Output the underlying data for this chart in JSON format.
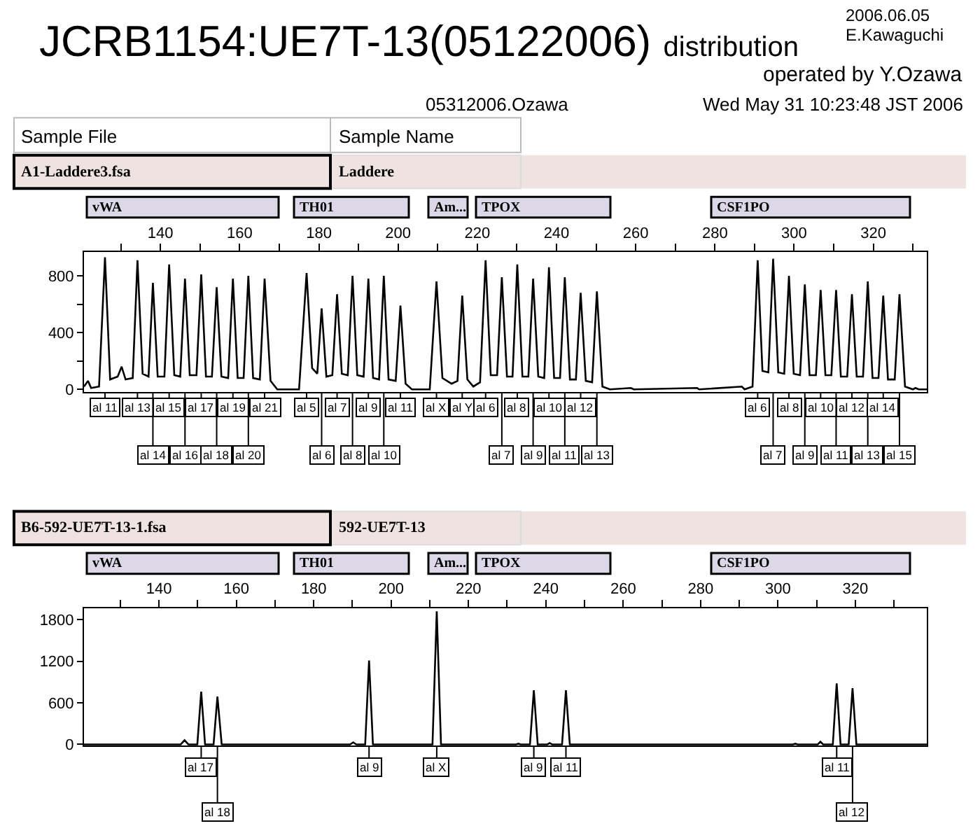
{
  "chart_data": [
    {
      "type": "line",
      "title": "JCRB1154:UE7T-13(05122006) distribution",
      "marker": "none",
      "annotations": [
        "2006.06.05",
        "E.Kawaguchi",
        "operated by Y.Ozawa",
        "05312006.Ozawa",
        "Wed May 31 10:23:48 JST 2006",
        "Sample File",
        "Sample Name",
        "A1-Laddere3.fsa",
        "Laddere",
        "vWA",
        "TH01",
        "Am...",
        "TPOX",
        "CSF1PO",
        "al 11",
        "al 13",
        "al 14",
        "al 15",
        "al 16",
        "al 17",
        "al 18",
        "al 19",
        "al 20",
        "al 21",
        "al 5",
        "al 6",
        "al 7",
        "al 8",
        "al 9",
        "al 10",
        "al 11",
        "al X",
        "al Y",
        "al 6",
        "al 7",
        "al 8",
        "al 9",
        "al 10",
        "al 11",
        "al 12",
        "al 13",
        "al 6",
        "al 7",
        "al 8",
        "al 9",
        "al 10",
        "al 11",
        "al 12",
        "al 13",
        "al 14",
        "al 15"
      ],
      "xlim": [
        120.7,
        333.5
      ],
      "xticks": [
        {
          "value": 130,
          "label": null
        },
        140,
        {
          "value": 150,
          "label": null
        },
        160,
        {
          "value": 170,
          "label": null
        },
        180,
        {
          "value": 190,
          "label": null
        },
        200,
        {
          "value": 210,
          "label": null
        },
        220,
        {
          "value": 230,
          "label": null
        },
        240,
        {
          "value": 250,
          "label": null
        },
        260,
        {
          "value": 270,
          "label": null
        },
        280,
        {
          "value": 290,
          "label": null
        },
        300,
        {
          "value": 310,
          "label": null
        },
        320,
        {
          "value": 330,
          "label": null
        }
      ],
      "ylim": [
        -20,
        966
      ],
      "yticks": [
        0,
        {
          "value": 200,
          "label": null
        },
        400,
        {
          "value": 600,
          "label": null
        },
        800
      ],
      "series": [
        {
          "color": "#000000",
          "x": [
            120.7,
            121.7,
            122.5,
            124.5,
            126.0,
            127.3,
            129.2,
            130.2,
            131.2,
            133.0,
            134.2,
            135.5,
            137.0,
            138.1,
            139.3,
            141.0,
            142.2,
            143.5,
            145.0,
            146.2,
            147.4,
            149.1,
            150.3,
            151.5,
            153.0,
            154.2,
            155.4,
            157.1,
            158.3,
            159.5,
            161.0,
            162.2,
            163.4,
            165.1,
            166.3,
            167.8,
            169.5,
            175.0,
            176.9,
            178.3,
            179.6,
            180.7,
            181.9,
            183.4,
            184.6,
            185.8,
            187.3,
            188.5,
            189.7,
            191.3,
            192.5,
            193.7,
            195.2,
            196.4,
            197.6,
            199.4,
            200.6,
            201.9,
            203.5,
            208.0,
            209.7,
            211.2,
            213.5,
            215.0,
            216.2,
            217.5,
            219.0,
            220.7,
            222.1,
            223.4,
            225.0,
            226.2,
            227.5,
            228.9,
            230.1,
            231.4,
            232.9,
            234.1,
            235.4,
            236.9,
            238.1,
            239.4,
            240.9,
            242.1,
            243.4,
            244.9,
            246.1,
            247.4,
            249.0,
            250.2,
            251.6,
            253.5,
            258.8,
            259.5,
            275.5,
            276.0,
            286.8,
            287.5,
            289.5,
            290.8,
            292.0,
            293.5,
            294.7,
            296.0,
            297.5,
            298.7,
            299.9,
            301.5,
            302.7,
            303.9,
            305.5,
            306.7,
            307.9,
            309.4,
            310.6,
            311.8,
            313.4,
            314.6,
            315.8,
            317.4,
            318.6,
            319.8,
            321.3,
            322.5,
            323.7,
            325.4,
            326.6,
            328.0,
            330.0,
            330.6,
            331.5,
            333.5
          ],
          "values": [
            20,
            60,
            10,
            20,
            930,
            70,
            90,
            160,
            70,
            80,
            910,
            110,
            90,
            750,
            90,
            90,
            880,
            100,
            90,
            780,
            100,
            100,
            810,
            90,
            90,
            720,
            90,
            80,
            780,
            80,
            80,
            800,
            80,
            70,
            780,
            60,
            0,
            0,
            820,
            150,
            110,
            570,
            90,
            100,
            670,
            110,
            100,
            800,
            100,
            90,
            780,
            80,
            70,
            800,
            70,
            60,
            590,
            40,
            0,
            0,
            760,
            80,
            40,
            60,
            660,
            70,
            20,
            50,
            910,
            100,
            100,
            790,
            90,
            90,
            880,
            90,
            90,
            780,
            90,
            80,
            860,
            80,
            80,
            790,
            70,
            70,
            680,
            60,
            50,
            690,
            20,
            0,
            10,
            0,
            10,
            0,
            20,
            0,
            20,
            910,
            130,
            120,
            920,
            120,
            110,
            800,
            110,
            100,
            740,
            100,
            100,
            700,
            100,
            100,
            700,
            90,
            90,
            670,
            90,
            90,
            760,
            80,
            80,
            660,
            70,
            70,
            670,
            20,
            0,
            10,
            0,
            0
          ]
        }
      ]
    },
    {
      "type": "line",
      "marker": "none",
      "annotations": [
        "B6-592-UE7T-13-1.fsa",
        "592-UE7T-13",
        "vWA",
        "TH01",
        "Am...",
        "TPOX",
        "CSF1PO",
        "al 17",
        "al 18",
        "al 9",
        "al X",
        "al 9",
        "al 11",
        "al 11",
        "al 12"
      ],
      "xlim": [
        120.6,
        338.5
      ],
      "xticks": [
        {
          "value": 130,
          "label": null
        },
        140,
        {
          "value": 150,
          "label": null
        },
        160,
        {
          "value": 170,
          "label": null
        },
        180,
        {
          "value": 190,
          "label": null
        },
        200,
        {
          "value": 210,
          "label": null
        },
        220,
        {
          "value": 230,
          "label": null
        },
        240,
        {
          "value": 250,
          "label": null
        },
        260,
        {
          "value": 270,
          "label": null
        },
        280,
        {
          "value": 290,
          "label": null
        },
        300,
        {
          "value": 310,
          "label": null
        },
        320,
        {
          "value": 330,
          "label": null
        }
      ],
      "ylim": [
        -18,
        1960
      ],
      "yticks": [
        0,
        600,
        1200,
        1800
      ],
      "series": [
        {
          "color": "#000000",
          "x": [
            120.6,
            145.6,
            146.6,
            147.6,
            149.9,
            150.9,
            151.9,
            154.1,
            155.1,
            156.2,
            189.4,
            190.2,
            191.0,
            193.3,
            194.3,
            195.3,
            210.7,
            211.8,
            212.9,
            232.3,
            232.9,
            233.5,
            235.9,
            236.9,
            237.9,
            240.4,
            241.0,
            241.6,
            244.2,
            245.2,
            246.2,
            303.9,
            304.5,
            305.1,
            310.3,
            311.0,
            311.7,
            314.2,
            315.2,
            316.2,
            318.3,
            319.3,
            320.3,
            338.5
          ],
          "values": [
            0,
            0,
            60,
            0,
            0,
            760,
            0,
            0,
            690,
            0,
            0,
            30,
            0,
            0,
            1210,
            0,
            0,
            1920,
            0,
            0,
            10,
            0,
            0,
            780,
            0,
            0,
            20,
            0,
            0,
            780,
            0,
            0,
            10,
            0,
            0,
            40,
            0,
            0,
            880,
            0,
            0,
            810,
            0,
            0
          ]
        }
      ]
    }
  ]
}
